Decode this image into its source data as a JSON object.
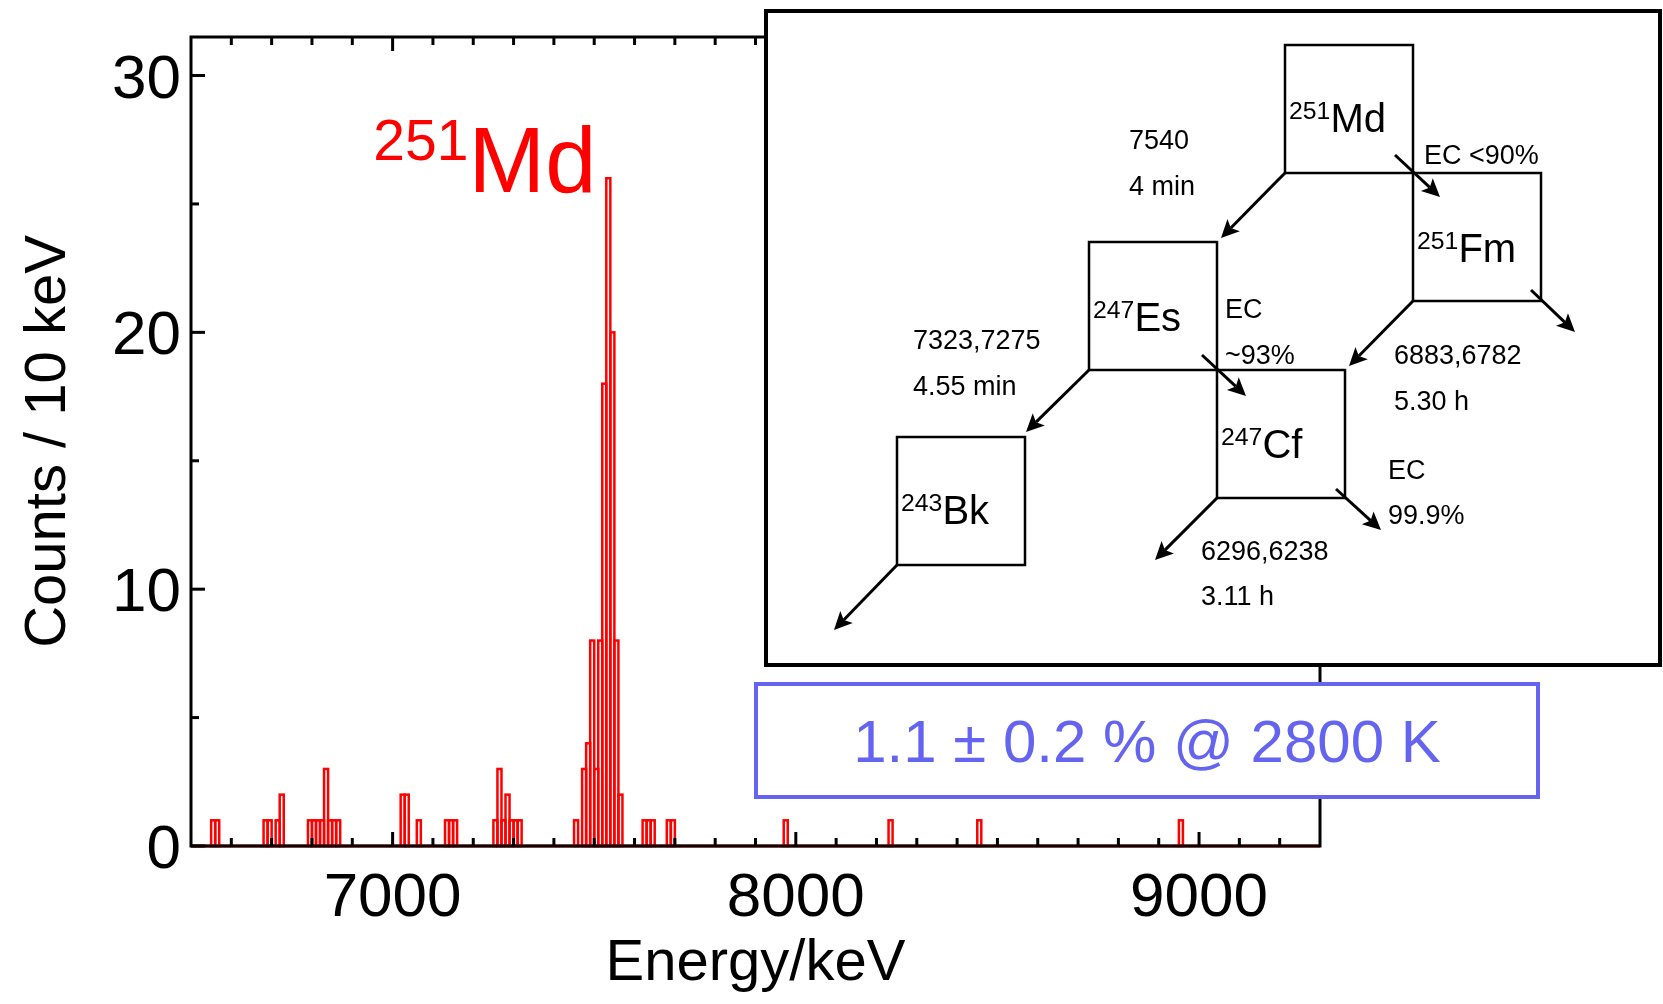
{
  "chart_data": {
    "type": "histogram",
    "xlabel": "Energy/keV",
    "ylabel": "Counts / 10 keV",
    "bins": [
      6550,
      6560,
      6570,
      6680,
      6690,
      6700,
      6710,
      6720,
      6730,
      6790,
      6800,
      6810,
      6820,
      6830,
      6840,
      6850,
      6860,
      6870,
      7020,
      7030,
      7040,
      7060,
      7070,
      7130,
      7140,
      7150,
      7160,
      7250,
      7260,
      7270,
      7280,
      7290,
      7300,
      7310,
      7320,
      7450,
      7460,
      7470,
      7480,
      7490,
      7500,
      7510,
      7520,
      7530,
      7540,
      7550,
      7560,
      7570,
      7620,
      7630,
      7640,
      7650,
      7680,
      7690,
      7700,
      7970,
      7980,
      8230,
      8240,
      8450,
      8460,
      8950,
      8960
    ],
    "values": [
      1,
      1,
      0,
      1,
      1,
      0,
      1,
      2,
      0,
      1,
      1,
      1,
      1,
      3,
      1,
      1,
      1,
      0,
      2,
      2,
      0,
      1,
      0,
      1,
      1,
      1,
      0,
      1,
      3,
      1,
      2,
      1,
      1,
      1,
      0,
      1,
      0,
      3,
      4,
      8,
      3,
      8,
      18,
      26,
      20,
      8,
      2,
      0,
      1,
      1,
      1,
      0,
      1,
      1,
      0,
      1,
      0,
      1,
      0,
      1,
      0,
      1
    ],
    "color": "#ff0000",
    "xlim": [
      6500,
      9300
    ],
    "xticks": [
      7000,
      8000,
      9000,
      {
        "value": 6600,
        "label": null
      },
      {
        "value": 6700,
        "label": null
      },
      {
        "value": 6800,
        "label": null
      },
      {
        "value": 6900,
        "label": null
      },
      {
        "value": 7100,
        "label": null
      },
      {
        "value": 7200,
        "label": null
      },
      {
        "value": 7300,
        "label": null
      },
      {
        "value": 7400,
        "label": null
      },
      {
        "value": 7500,
        "label": null
      },
      {
        "value": 7600,
        "label": null
      },
      {
        "value": 7700,
        "label": null
      },
      {
        "value": 7800,
        "label": null
      },
      {
        "value": 7900,
        "label": null
      },
      {
        "value": 8100,
        "label": null
      },
      {
        "value": 8200,
        "label": null
      },
      {
        "value": 8300,
        "label": null
      },
      {
        "value": 8400,
        "label": null
      },
      {
        "value": 8500,
        "label": null
      },
      {
        "value": 8600,
        "label": null
      },
      {
        "value": 8700,
        "label": null
      },
      {
        "value": 8800,
        "label": null
      },
      {
        "value": 8900,
        "label": null
      },
      {
        "value": 9100,
        "label": null
      },
      {
        "value": 9200,
        "label": null
      }
    ],
    "ylim": [
      0,
      31.5
    ],
    "yticks": [
      0,
      10,
      20,
      30,
      {
        "value": 5,
        "label": null
      },
      {
        "value": 15,
        "label": null
      },
      {
        "value": 25,
        "label": null
      }
    ],
    "annotations": [
      {
        "text": "$^{251}$Md",
        "x": 7535,
        "y": 26
      },
      "1.1 ± 0.2 % @ 2800 K",
      "$^{251}$Md",
      "$^{251}$Fm",
      "$^{247}$Es",
      "$^{247}$Cf",
      "$^{243}$Bk",
      "7540",
      "4 min",
      "EC <90%",
      "EC",
      "~93%",
      "7323,7275",
      "4.55 min",
      "6883,6782",
      "5.30 h",
      "EC",
      "99.9%",
      "6296,6238",
      "3.11 h"
    ]
  }
}
